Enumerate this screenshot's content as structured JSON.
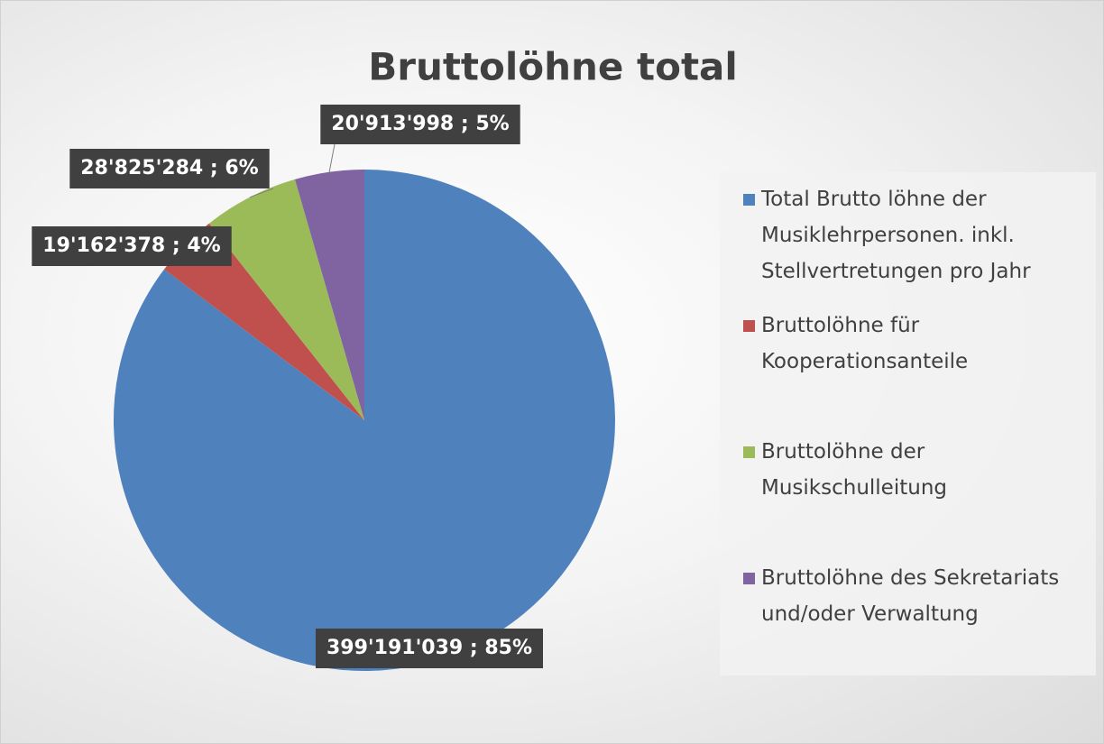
{
  "chart_data": {
    "type": "pie",
    "title": "Bruttolöhne total",
    "series": [
      {
        "name": "Total Brutto löhne der Musiklehrpersonen. inkl. Stellvertretungen pro Jahr",
        "color": "#4f81bd",
        "values": [
          399191039
        ],
        "value_labels": [
          "399'191'039 ; 85%"
        ]
      },
      {
        "name": "Bruttolöhne für Kooperationsanteile",
        "color": "#c0504d",
        "values": [
          19162378
        ],
        "value_labels": [
          "19'162'378 ; 4%"
        ]
      },
      {
        "name": "Bruttolöhne der Musikschulleitung",
        "color": "#9bbb59",
        "values": [
          28825284
        ],
        "value_labels": [
          "28'825'284 ; 6%"
        ]
      },
      {
        "name": "Bruttolöhne des Sekretariats und/oder Verwaltung",
        "color": "#8064a2",
        "values": [
          20913998
        ],
        "value_labels": [
          "20'913'998 ; 5%"
        ]
      }
    ],
    "legend": "right"
  }
}
